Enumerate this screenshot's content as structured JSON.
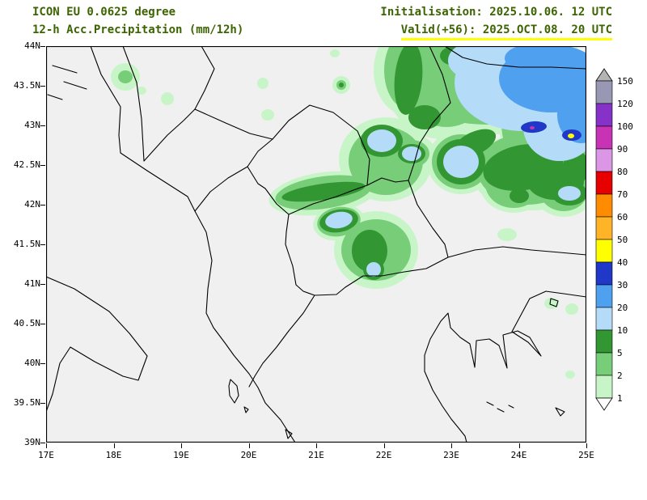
{
  "header": {
    "model_line": "ICON EU 0.0625 degree",
    "param_line": "12-h Acc.Precipitation (mm/12h)",
    "init_line": "Initialisation: 2025.10.06. 12 UTC",
    "valid_line": "Valid(+56): 2025.OCT.08. 20 UTC",
    "text_color": "#3c6400",
    "underline_color": "#ffff00"
  },
  "map": {
    "bg_color": "#f0f0f0",
    "frame_color": "#000000",
    "lat_labels": [
      "44N",
      "43.5N",
      "43N",
      "42.5N",
      "42N",
      "41.5N",
      "41N",
      "40.5N",
      "40N",
      "39.5N",
      "39N"
    ],
    "lon_labels": [
      "17E",
      "18E",
      "19E",
      "20E",
      "21E",
      "22E",
      "23E",
      "24E",
      "25E"
    ],
    "palette": {
      "lg": "#c8f5c8",
      "g": "#78cd78",
      "dg": "#329632",
      "lb": "#b4dcf8",
      "b": "#50a0f0",
      "nb": "#2038c8",
      "mg": "#c832b4",
      "y": "#ffff00"
    },
    "blobs": [
      [
        98,
        38,
        18,
        17,
        0,
        "lg"
      ],
      [
        118,
        55,
        6,
        5,
        0,
        "lg"
      ],
      [
        150,
        65,
        8,
        8,
        0,
        "lg"
      ],
      [
        268,
        46,
        7,
        7,
        0,
        "lg"
      ],
      [
        357,
        9,
        6,
        5,
        0,
        "lg"
      ],
      [
        365,
        48,
        11,
        11,
        0,
        "lg"
      ],
      [
        274,
        85,
        8,
        7,
        0,
        "lg"
      ],
      [
        420,
        140,
        58,
        52,
        0,
        "lg"
      ],
      [
        343,
        182,
        68,
        26,
        -8,
        "lg"
      ],
      [
        362,
        218,
        32,
        22,
        -10,
        "lg"
      ],
      [
        408,
        252,
        52,
        48,
        0,
        "lg"
      ],
      [
        452,
        133,
        30,
        24,
        0,
        "lg"
      ],
      [
        513,
        143,
        42,
        40,
        0,
        "lg"
      ],
      [
        578,
        170,
        42,
        36,
        0,
        "lg"
      ],
      [
        640,
        178,
        38,
        33,
        0,
        "lg"
      ],
      [
        540,
        35,
        130,
        75,
        0,
        "lg"
      ],
      [
        630,
        95,
        70,
        85,
        0,
        "lg"
      ],
      [
        490,
        45,
        70,
        70,
        0,
        "lg"
      ],
      [
        600,
        155,
        75,
        48,
        0,
        "lg"
      ],
      [
        445,
        30,
        40,
        55,
        0,
        "lg"
      ],
      [
        570,
        233,
        12,
        8,
        0,
        "lg"
      ],
      [
        625,
        318,
        9,
        7,
        0,
        "lg"
      ],
      [
        650,
        325,
        8,
        7,
        0,
        "lg"
      ],
      [
        648,
        406,
        6,
        5,
        0,
        "lg"
      ],
      [
        98,
        38,
        9,
        8,
        0,
        "g"
      ],
      [
        365,
        48,
        6,
        6,
        0,
        "g"
      ],
      [
        420,
        142,
        46,
        42,
        0,
        "g"
      ],
      [
        343,
        181,
        60,
        20,
        -8,
        "g"
      ],
      [
        362,
        217,
        27,
        18,
        -10,
        "g"
      ],
      [
        408,
        252,
        43,
        38,
        0,
        "g"
      ],
      [
        452,
        133,
        22,
        17,
        0,
        "g"
      ],
      [
        513,
        143,
        36,
        34,
        0,
        "g"
      ],
      [
        578,
        170,
        35,
        30,
        0,
        "g"
      ],
      [
        640,
        178,
        30,
        26,
        0,
        "g"
      ],
      [
        545,
        32,
        115,
        65,
        0,
        "g"
      ],
      [
        625,
        95,
        62,
        75,
        0,
        "g"
      ],
      [
        495,
        42,
        55,
        58,
        0,
        "g"
      ],
      [
        595,
        152,
        62,
        44,
        0,
        "g"
      ],
      [
        448,
        30,
        30,
        48,
        0,
        "g"
      ],
      [
        365,
        48,
        3,
        3,
        0,
        "dg"
      ],
      [
        343,
        180,
        52,
        10,
        -8,
        "dg"
      ],
      [
        400,
        253,
        22,
        26,
        0,
        "dg"
      ],
      [
        362,
        216,
        24,
        14,
        -10,
        "dg"
      ],
      [
        415,
        117,
        26,
        20,
        0,
        "dg"
      ],
      [
        452,
        133,
        17,
        12,
        0,
        "dg"
      ],
      [
        513,
        143,
        30,
        28,
        0,
        "dg"
      ],
      [
        405,
        276,
        13,
        13,
        0,
        "dg"
      ],
      [
        448,
        40,
        17,
        45,
        5,
        "dg"
      ],
      [
        468,
        88,
        20,
        15,
        0,
        "dg"
      ],
      [
        505,
        12,
        18,
        12,
        0,
        "dg"
      ],
      [
        530,
        120,
        28,
        14,
        -25,
        "dg"
      ],
      [
        590,
        150,
        50,
        28,
        -10,
        "dg"
      ],
      [
        630,
        168,
        35,
        22,
        0,
        "dg"
      ],
      [
        655,
        150,
        16,
        22,
        0,
        "dg"
      ],
      [
        558,
        162,
        14,
        10,
        0,
        "dg"
      ],
      [
        585,
        185,
        12,
        9,
        0,
        "dg"
      ],
      [
        647,
        182,
        22,
        15,
        0,
        "dg"
      ],
      [
        415,
        117,
        18,
        14,
        0,
        "lb"
      ],
      [
        452,
        133,
        12,
        9,
        0,
        "lb"
      ],
      [
        513,
        143,
        22,
        20,
        0,
        "lb"
      ],
      [
        362,
        215,
        17,
        10,
        -10,
        "lb"
      ],
      [
        405,
        276,
        9,
        9,
        0,
        "lb"
      ],
      [
        647,
        182,
        14,
        9,
        0,
        "lb"
      ],
      [
        590,
        45,
        85,
        60,
        0,
        "lb"
      ],
      [
        635,
        100,
        45,
        42,
        0,
        "lb"
      ],
      [
        525,
        18,
        28,
        22,
        0,
        "lb"
      ],
      [
        625,
        40,
        65,
        42,
        0,
        "b"
      ],
      [
        662,
        85,
        30,
        35,
        0,
        "b"
      ],
      [
        605,
        15,
        38,
        18,
        0,
        "b"
      ],
      [
        603,
        100,
        16,
        7,
        -4,
        "nb"
      ],
      [
        650,
        110,
        12,
        7,
        0,
        "nb"
      ],
      [
        601,
        101,
        3,
        2,
        0,
        "mg"
      ],
      [
        649,
        111,
        4,
        3,
        0,
        "y"
      ]
    ]
  },
  "legend": {
    "boundaries": [
      "150",
      "120",
      "100",
      "90",
      "80",
      "70",
      "60",
      "50",
      "40",
      "30",
      "20",
      "10",
      "5",
      "2",
      "1"
    ],
    "segment_colors": [
      "#9898b4",
      "#8632c8",
      "#c832b4",
      "#dc96e6",
      "#e60000",
      "#ff8c00",
      "#ffb428",
      "#ffff00",
      "#2038c8",
      "#50a0f0",
      "#b4dcf8",
      "#329632",
      "#78cd78",
      "#c8f5c8"
    ],
    "above_color": "#b4b4b4",
    "below_color": "#ffffff"
  }
}
